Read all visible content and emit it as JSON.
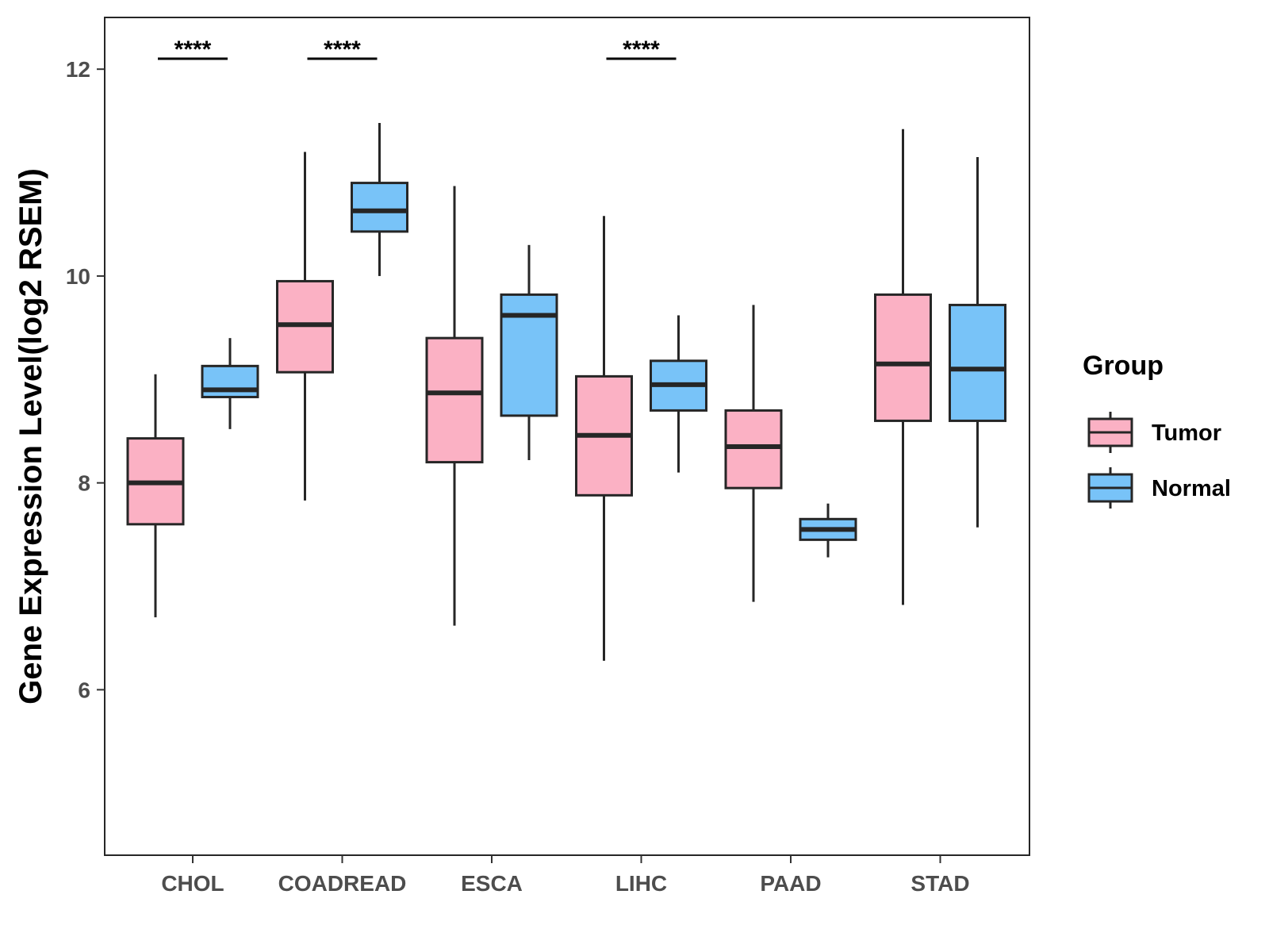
{
  "chart_data": {
    "type": "boxplot",
    "title": "",
    "xlabel": "",
    "ylabel": "Gene Expression Level(log2 RSEM)",
    "ylim": [
      4.4,
      12.5
    ],
    "yticks": [
      6,
      8,
      10,
      12
    ],
    "ytick_labels": [
      "6",
      "8",
      "10",
      "12"
    ],
    "grid": false,
    "legend": {
      "title": "Group",
      "position": "right",
      "entries": [
        "Tumor",
        "Normal"
      ]
    },
    "colors": {
      "Tumor": "#FBB1C4",
      "Normal": "#78C3F8",
      "outline": "#262626"
    },
    "categories": [
      "CHOL",
      "COADREAD",
      "ESCA",
      "LIHC",
      "PAAD",
      "STAD"
    ],
    "series": [
      {
        "name": "Tumor",
        "boxes": [
          {
            "min": 6.7,
            "q1": 7.6,
            "median": 8.0,
            "q3": 8.43,
            "max": 9.05
          },
          {
            "min": 7.83,
            "q1": 9.07,
            "median": 9.53,
            "q3": 9.95,
            "max": 11.2
          },
          {
            "min": 6.62,
            "q1": 8.2,
            "median": 8.87,
            "q3": 9.4,
            "max": 10.87
          },
          {
            "min": 6.28,
            "q1": 7.88,
            "median": 8.46,
            "q3": 9.03,
            "max": 10.58
          },
          {
            "min": 6.85,
            "q1": 7.95,
            "median": 8.35,
            "q3": 8.7,
            "max": 9.72
          },
          {
            "min": 6.82,
            "q1": 8.6,
            "median": 9.15,
            "q3": 9.82,
            "max": 11.42
          }
        ]
      },
      {
        "name": "Normal",
        "boxes": [
          {
            "min": 8.52,
            "q1": 8.83,
            "median": 8.9,
            "q3": 9.13,
            "max": 9.4
          },
          {
            "min": 10.0,
            "q1": 10.43,
            "median": 10.63,
            "q3": 10.9,
            "max": 11.48
          },
          {
            "min": 8.22,
            "q1": 8.65,
            "median": 9.62,
            "q3": 9.82,
            "max": 10.3
          },
          {
            "min": 8.1,
            "q1": 8.7,
            "median": 8.95,
            "q3": 9.18,
            "max": 9.62
          },
          {
            "min": 7.28,
            "q1": 7.45,
            "median": 7.55,
            "q3": 7.65,
            "max": 7.8
          },
          {
            "min": 7.57,
            "q1": 8.6,
            "median": 9.1,
            "q3": 9.72,
            "max": 11.15
          }
        ]
      }
    ],
    "annotations": [
      {
        "category": "CHOL",
        "text": "****"
      },
      {
        "category": "COADREAD",
        "text": "****"
      },
      {
        "category": "LIHC",
        "text": "****"
      }
    ]
  }
}
